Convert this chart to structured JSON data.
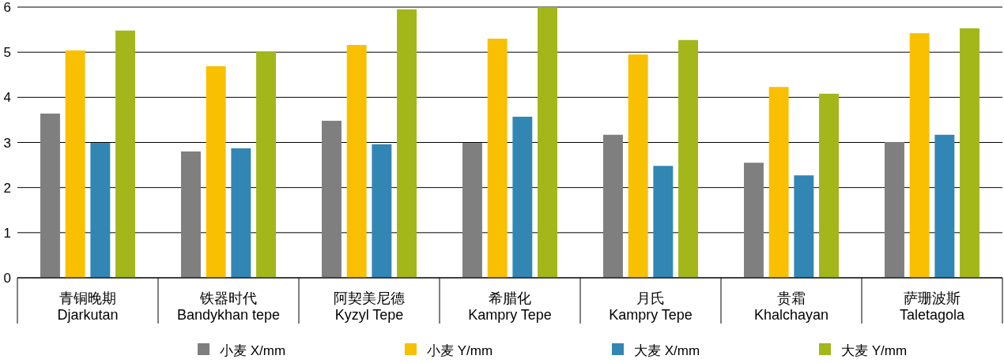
{
  "chart_data": {
    "type": "bar",
    "categories": [
      "青铜晚期\nDjarkutan",
      "铁器时代\nBandykhan tepe",
      "阿契美尼德\nKyzyl Tepe",
      "希腊化\nKampry Tepe",
      "月氏\nKampry Tepe",
      "贵霜\nKhalchayan",
      "萨珊波斯\nTaletagola"
    ],
    "series": [
      {
        "name": "小麦 X/mm",
        "color": "#7f7f80",
        "values": [
          3.64,
          2.8,
          3.48,
          2.99,
          3.17,
          2.55,
          3.01
        ]
      },
      {
        "name": "小麦 Y/mm",
        "color": "#f8c000",
        "values": [
          5.04,
          4.69,
          5.16,
          5.3,
          4.95,
          4.23,
          5.42
        ]
      },
      {
        "name": "大麦 X/mm",
        "color": "#3186b4",
        "values": [
          2.99,
          2.87,
          2.96,
          3.57,
          2.48,
          2.27,
          3.17
        ]
      },
      {
        "name": "大麦 Y/mm",
        "color": "#a3b61a",
        "values": [
          5.48,
          5.02,
          5.95,
          6.0,
          5.27,
          4.08,
          5.53
        ]
      }
    ],
    "ylim": [
      0,
      6
    ],
    "yticks": [
      0,
      1,
      2,
      3,
      4,
      5,
      6
    ],
    "grid": "y",
    "legend": "bottom"
  }
}
